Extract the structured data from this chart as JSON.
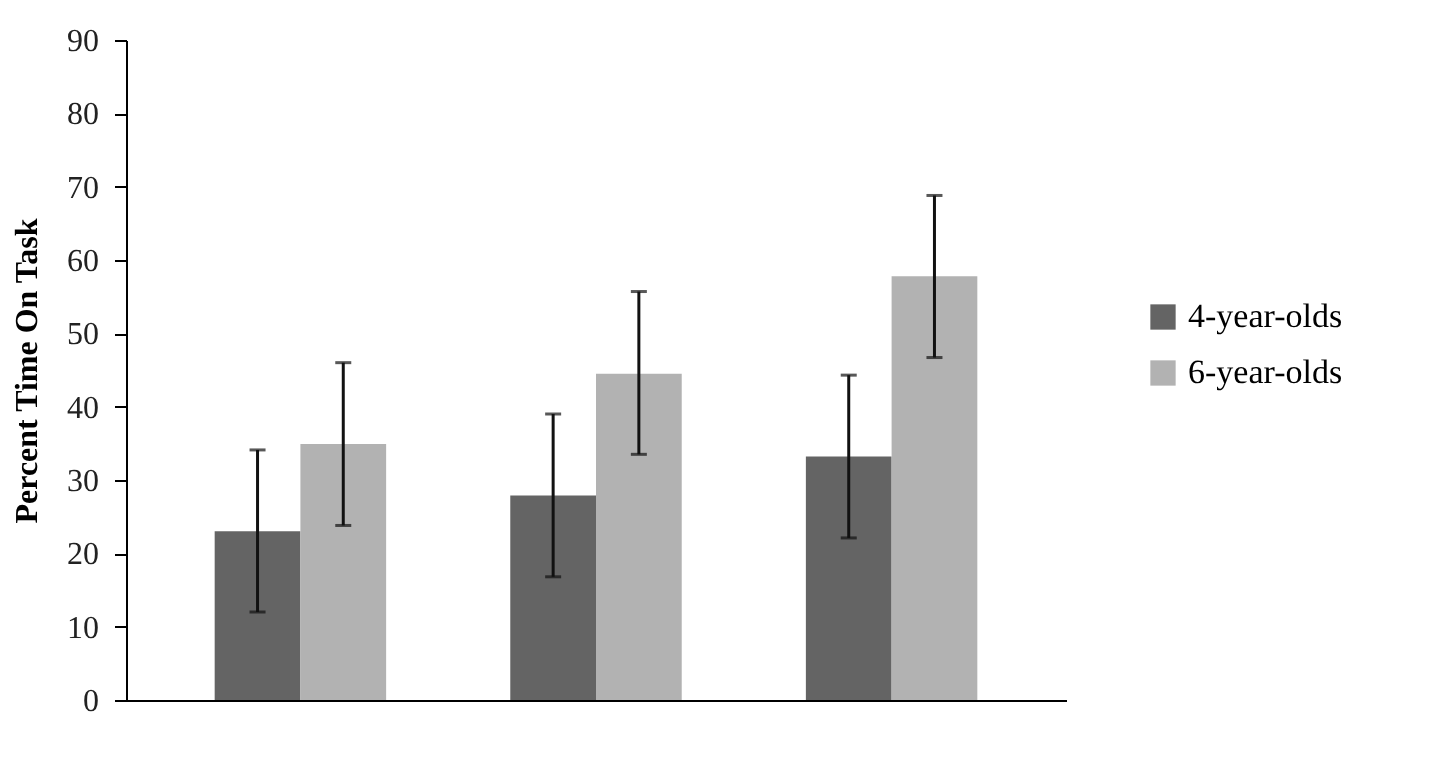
{
  "chart_data": {
    "type": "bar",
    "ylabel": "Percent Time On Task",
    "categories": [
      null,
      null,
      null
    ],
    "series": [
      {
        "name": "4-year-olds",
        "color": "#646464",
        "values": [
          23.0,
          27.9,
          33.2
        ],
        "errors": [
          [
            12.0,
            34.1
          ],
          [
            16.8,
            39.0
          ],
          [
            22.1,
            44.3
          ]
        ]
      },
      {
        "name": "6-year-olds",
        "color": "#b2b2b2",
        "values": [
          34.9,
          44.5,
          57.8
        ],
        "errors": [
          [
            23.8,
            46.0
          ],
          [
            33.5,
            55.7
          ],
          [
            46.7,
            68.8
          ]
        ]
      }
    ],
    "ylim": [
      0,
      90
    ],
    "yticks": [
      0,
      10,
      20,
      30,
      40,
      50,
      60,
      70,
      80,
      90
    ],
    "grid": false,
    "legend": "right",
    "tick_labels": "y"
  }
}
